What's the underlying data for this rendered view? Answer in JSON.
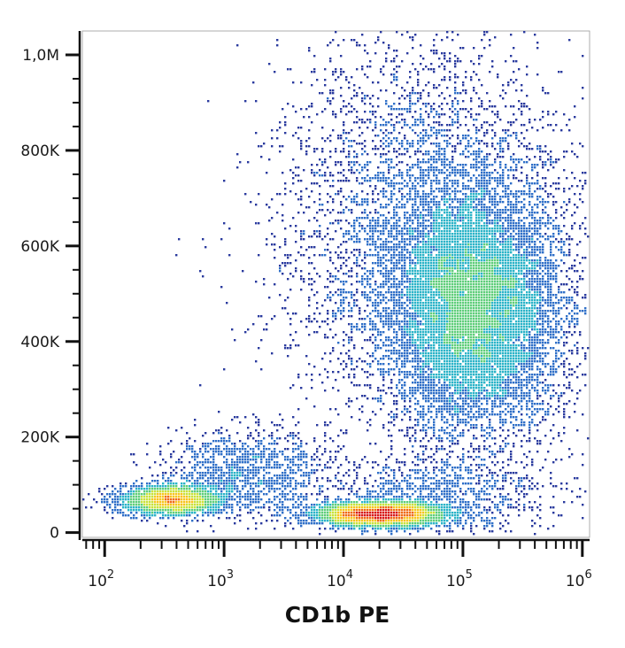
{
  "chart_data": {
    "type": "heatmap",
    "title": "",
    "xlabel": "CD1b PE",
    "ylabel": "",
    "x_scale": "log",
    "xlim": [
      65,
      1150000
    ],
    "ylim": [
      -10000,
      1050000
    ],
    "x_ticks": [
      {
        "value": 100,
        "base": "10",
        "exp": "2"
      },
      {
        "value": 1000,
        "base": "10",
        "exp": "3"
      },
      {
        "value": 10000,
        "base": "10",
        "exp": "4"
      },
      {
        "value": 100000,
        "base": "10",
        "exp": "5"
      },
      {
        "value": 1000000,
        "base": "10",
        "exp": "6"
      }
    ],
    "y_ticks": [
      {
        "value": 0,
        "label": "0"
      },
      {
        "value": 200000,
        "label": "200K"
      },
      {
        "value": 400000,
        "label": "400K"
      },
      {
        "value": 600000,
        "label": "600K"
      },
      {
        "value": 800000,
        "label": "800K"
      },
      {
        "value": 1000000,
        "label": "1,0M"
      }
    ],
    "grid": false,
    "density_colormap": [
      "#2a3a9e",
      "#2f6fc8",
      "#2bb4c8",
      "#5fce7a",
      "#c9e23a",
      "#f7c51e",
      "#f06a14",
      "#d81818"
    ],
    "populations": [
      {
        "x_log10_center": 2.56,
        "y_center": 68000,
        "x_log10_sd": 0.22,
        "y_sd": 16000,
        "count": 2600
      },
      {
        "x_log10_center": 3.2,
        "y_center": 125000,
        "x_log10_sd": 0.34,
        "y_sd": 45000,
        "count": 1300
      },
      {
        "x_log10_center": 4.3,
        "y_center": 38000,
        "x_log10_sd": 0.28,
        "y_sd": 12000,
        "count": 4200
      },
      {
        "x_log10_center": 4.75,
        "y_center": 75000,
        "x_log10_sd": 0.5,
        "y_sd": 45000,
        "count": 1000
      },
      {
        "x_log10_center": 5.1,
        "y_center": 470000,
        "x_log10_sd": 0.36,
        "y_sd": 130000,
        "count": 10500
      },
      {
        "x_log10_center": 4.65,
        "y_center": 640000,
        "x_log10_sd": 0.6,
        "y_sd": 210000,
        "count": 4500
      }
    ]
  }
}
